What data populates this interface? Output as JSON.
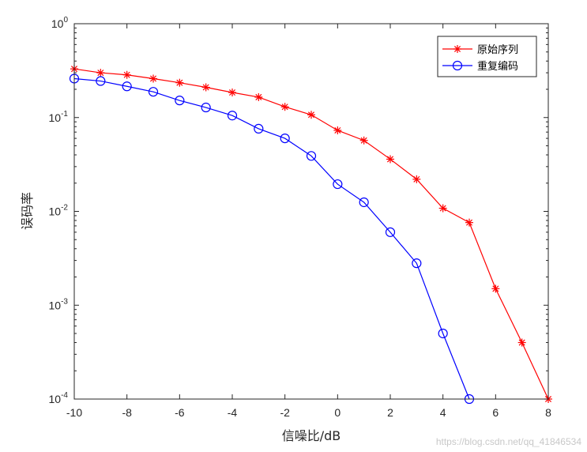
{
  "chart_data": {
    "type": "line",
    "title": "",
    "xlabel": "信噪比/dB",
    "ylabel": "误码率",
    "xlim": [
      -10,
      8
    ],
    "ylim": [
      0.0001,
      1
    ],
    "yscale": "log",
    "grid": false,
    "legend_position": "top-right",
    "x_ticks": [
      -10,
      -8,
      -6,
      -4,
      -2,
      0,
      2,
      4,
      6,
      8
    ],
    "x_tick_labels": [
      "-10",
      "-8",
      "-6",
      "-4",
      "-2",
      "0",
      "2",
      "4",
      "6",
      "8"
    ],
    "y_ticks": [
      {
        "value": 1,
        "base": "10",
        "exp": "0"
      },
      {
        "value": 0.1,
        "base": "10",
        "exp": "-1"
      },
      {
        "value": 0.01,
        "base": "10",
        "exp": "-2"
      },
      {
        "value": 0.001,
        "base": "10",
        "exp": "-3"
      },
      {
        "value": 0.0001,
        "base": "10",
        "exp": "-4"
      }
    ],
    "series": [
      {
        "name": "原始序列",
        "color": "#ff0000",
        "marker": "asterisk",
        "x": [
          -10,
          -9,
          -8,
          -7,
          -6,
          -5,
          -4,
          -3,
          -2,
          -1,
          0,
          1,
          2,
          3,
          4,
          5,
          6,
          7,
          8
        ],
        "y": [
          0.33,
          0.3,
          0.285,
          0.26,
          0.235,
          0.21,
          0.185,
          0.165,
          0.13,
          0.107,
          0.073,
          0.057,
          0.036,
          0.022,
          0.0108,
          0.0076,
          0.0015,
          0.0004,
          0.0001
        ]
      },
      {
        "name": "重复编码",
        "color": "#0000ff",
        "marker": "circle",
        "x": [
          -10,
          -9,
          -8,
          -7,
          -6,
          -5,
          -4,
          -3,
          -2,
          -1,
          0,
          1,
          2,
          3,
          4,
          5
        ],
        "y": [
          0.26,
          0.245,
          0.215,
          0.188,
          0.152,
          0.128,
          0.105,
          0.076,
          0.06,
          0.039,
          0.0195,
          0.0125,
          0.006,
          0.0028,
          0.0005,
          0.0001
        ]
      }
    ]
  },
  "watermark": "https://blog.csdn.net/qq_41846534"
}
